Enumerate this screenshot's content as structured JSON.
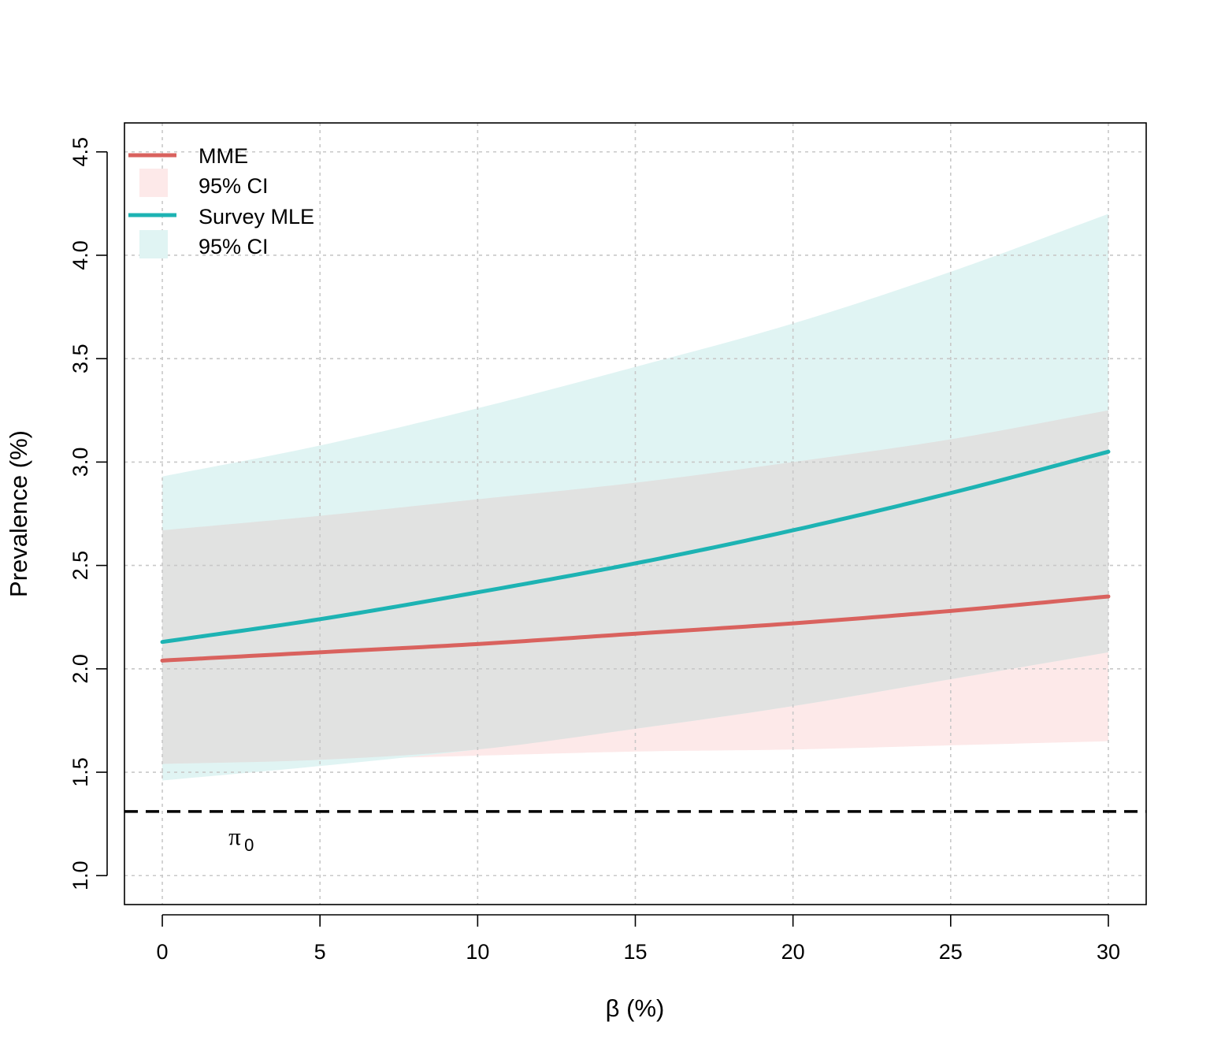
{
  "chart_data": {
    "type": "line",
    "title": "",
    "xlabel": "β (%)",
    "ylabel": "Prevalence (%)",
    "xlim": [
      -1.2,
      31.2
    ],
    "ylim": [
      0.86,
      4.64
    ],
    "x_ticks": [
      0,
      5,
      10,
      15,
      20,
      25,
      30
    ],
    "y_ticks": [
      1.0,
      1.5,
      2.0,
      2.5,
      3.0,
      3.5,
      4.0,
      4.5
    ],
    "y_tick_labels": [
      "1.0",
      "1.5",
      "2.0",
      "2.5",
      "3.0",
      "3.5",
      "4.0",
      "4.5"
    ],
    "grid": true,
    "x": [
      0,
      5,
      10,
      15,
      20,
      25,
      30
    ],
    "series": [
      {
        "name": "MME",
        "color": "#d9625e",
        "values": [
          2.04,
          2.08,
          2.12,
          2.17,
          2.22,
          2.28,
          2.35
        ],
        "ci_label": "95% CI",
        "ci_color": "#fde9e9",
        "ci_lower": [
          1.54,
          1.56,
          1.58,
          1.6,
          1.61,
          1.63,
          1.65
        ],
        "ci_upper": [
          2.67,
          2.74,
          2.82,
          2.9,
          3.0,
          3.11,
          3.25
        ]
      },
      {
        "name": "Survey MLE",
        "color": "#1db3b3",
        "values": [
          2.13,
          2.24,
          2.37,
          2.51,
          2.67,
          2.85,
          3.05
        ],
        "ci_label": "95% CI",
        "ci_color": "#e0f4f3",
        "ci_lower": [
          1.46,
          1.53,
          1.61,
          1.71,
          1.82,
          1.95,
          2.08
        ],
        "ci_upper": [
          2.93,
          3.08,
          3.26,
          3.46,
          3.67,
          3.92,
          4.2
        ]
      }
    ],
    "overlap_color": "#e1e2e1",
    "reference_line": {
      "y": 1.31,
      "style": "dashed",
      "label": "π",
      "label_subscript": "0",
      "label_x": 2.5
    },
    "legend": {
      "position": "top-left",
      "entries": [
        "MME",
        "95% CI",
        "Survey MLE",
        "95% CI"
      ]
    }
  }
}
